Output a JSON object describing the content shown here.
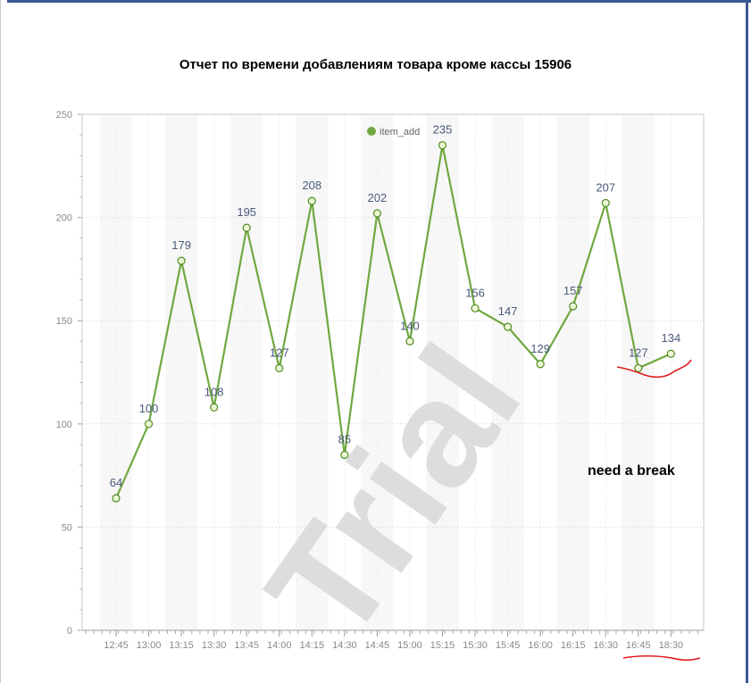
{
  "chart_data": {
    "type": "line",
    "title": "Отчет по времени добавлениям товара кроме кассы 15906",
    "xlabel": "",
    "ylabel": "",
    "categories": [
      "12:45",
      "13:00",
      "13:15",
      "13:30",
      "13:45",
      "14:00",
      "14:15",
      "14:30",
      "14:45",
      "15:00",
      "15:15",
      "15:30",
      "15:45",
      "16:00",
      "16:15",
      "16:30",
      "16:45",
      "18:30"
    ],
    "series": [
      {
        "name": "item_add",
        "values": [
          64,
          100,
          179,
          108,
          195,
          127,
          208,
          85,
          202,
          140,
          235,
          156,
          147,
          129,
          157,
          207,
          127,
          134
        ]
      }
    ],
    "ylim": [
      0,
      250
    ],
    "yticks": [
      0,
      50,
      100,
      150,
      200,
      250
    ],
    "grid": true,
    "legend": "top-center",
    "line_color": "#70a83f",
    "point_fill": "#ecf7d4"
  },
  "annotations": {
    "note": "need a break",
    "watermark": "Trial",
    "pen_color": "#e31b1b"
  }
}
